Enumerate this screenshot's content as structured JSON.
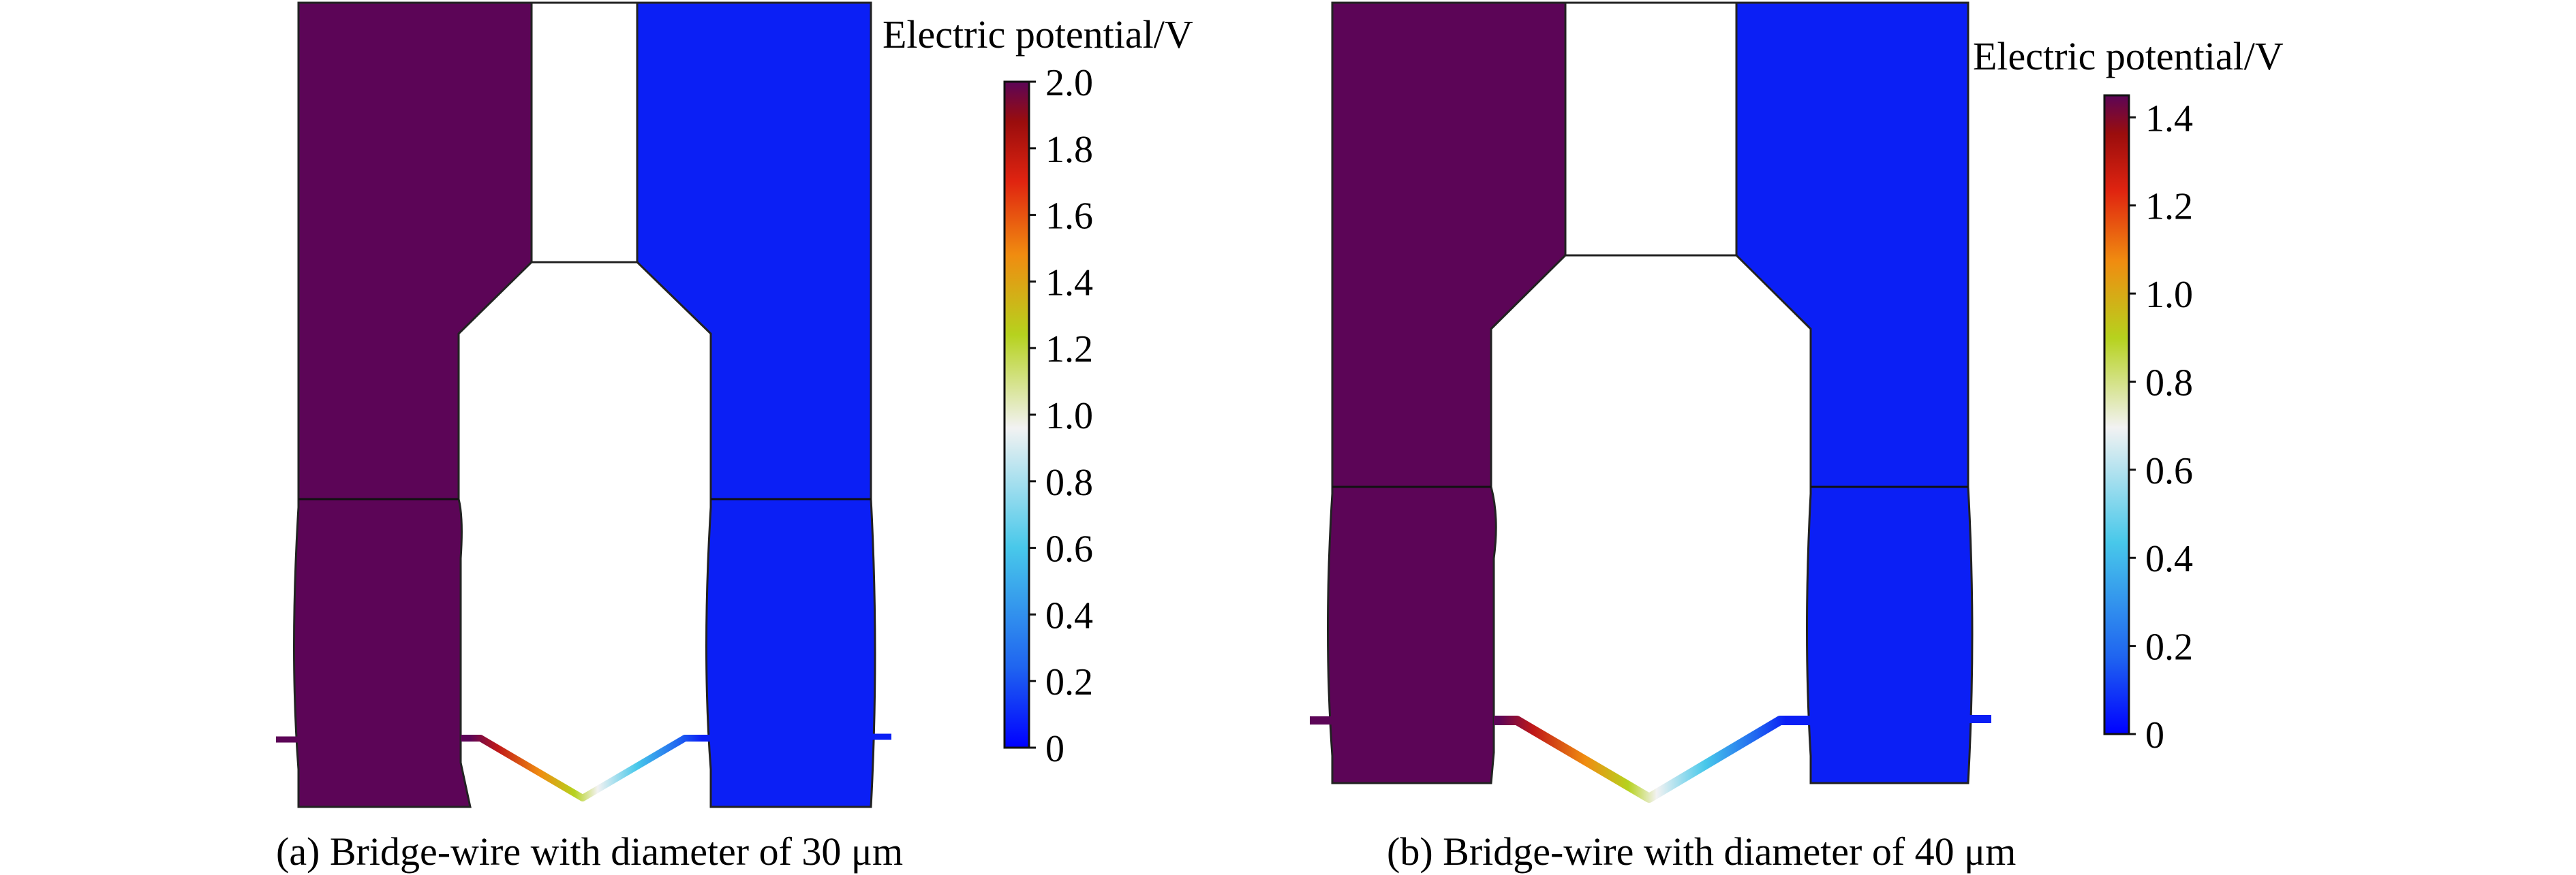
{
  "panels": [
    {
      "caption": "(a) Bridge-wire with diameter of 30 μm",
      "colorbar": {
        "title": "Electric potential/V",
        "min": 0,
        "max": 2.0,
        "ticks": [
          "2.0",
          "1.8",
          "1.6",
          "1.4",
          "1.2",
          "1.0",
          "0.8",
          "0.6",
          "0.4",
          "0.2",
          "0"
        ]
      }
    },
    {
      "caption": "(b) Bridge-wire with diameter of 40 μm",
      "colorbar": {
        "title": "Electric potential/V",
        "min": 0,
        "max": 1.45,
        "ticks": [
          "1.4",
          "1.2",
          "1.0",
          "0.8",
          "0.6",
          "0.4",
          "0.2",
          "0"
        ]
      }
    }
  ],
  "colors": {
    "high_potential": "#5c0557",
    "low_potential": "#0b1ff5",
    "colormap": [
      "#0000ff",
      "#1f64f0",
      "#48c8ea",
      "#f2f2f2",
      "#b6d21e",
      "#f08c10",
      "#e02410",
      "#9a0d0d",
      "#5c0557"
    ]
  }
}
